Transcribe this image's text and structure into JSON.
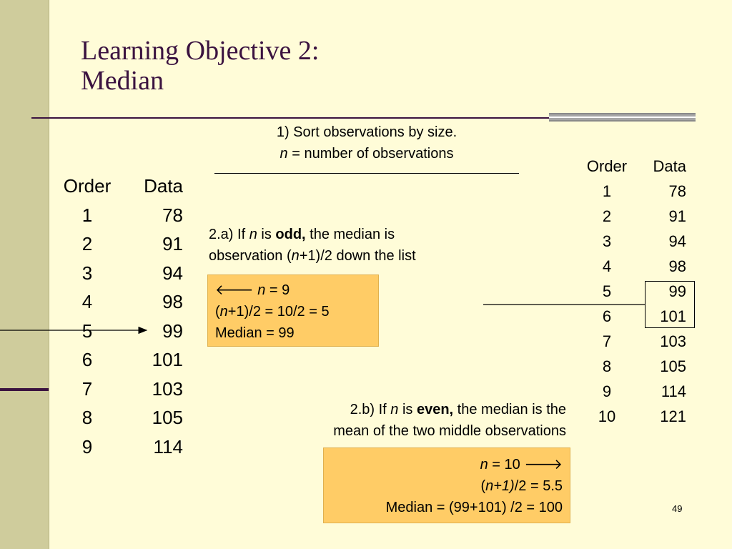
{
  "slide": {
    "title_line1": "Learning Objective 2:",
    "title_line2": "Median",
    "step1_line1": "1) Sort observations by size.",
    "step1_line2_n": "n",
    "step1_line2_rest": " = number of observations",
    "odd": {
      "line1_a": "2.a) If ",
      "line1_n": "n",
      "line1_b": " is ",
      "line1_bold": "odd,",
      "line1_c": " the median is",
      "line2_a": "observation (",
      "line2_n": "n",
      "line2_b": "+1)/2 down the list",
      "box_line1_arrow": "🡐",
      "box_line1_n": "n",
      "box_line1_rest": " = 9",
      "box_line2_a": "(",
      "box_line2_n": "n",
      "box_line2_b": "+1)/2 = 10/2 = 5",
      "box_line3": "Median = 99"
    },
    "even": {
      "line1_a": "2.b) If ",
      "line1_n": "n",
      "line1_b": " is ",
      "line1_bold": "even,",
      "line1_c": " the median is the",
      "line2": "mean of the two middle observations",
      "box_line1_n": "n",
      "box_line1_rest": " = 10 ",
      "box_line1_arrow": "🡒",
      "box_line2_a": "(",
      "box_line2_n": "n+1)",
      "box_line2_b": "/2 = 5.5",
      "box_line3": "Median = (99+101) /2 = 100"
    },
    "page_number": "49"
  },
  "left_table": {
    "header_order": "Order",
    "header_data": "Data",
    "rows": [
      [
        "1",
        "78"
      ],
      [
        "2",
        "91"
      ],
      [
        "3",
        "94"
      ],
      [
        "4",
        "98"
      ],
      [
        "5",
        "99"
      ],
      [
        "6",
        "101"
      ],
      [
        "7",
        "103"
      ],
      [
        "8",
        "105"
      ],
      [
        "9",
        "114"
      ]
    ]
  },
  "right_table": {
    "header_order": "Order",
    "header_data": "Data",
    "rows": [
      [
        "1",
        "78"
      ],
      [
        "2",
        "91"
      ],
      [
        "3",
        "94"
      ],
      [
        "4",
        "98"
      ],
      [
        "5",
        "99"
      ],
      [
        "6",
        "101"
      ],
      [
        "7",
        "103"
      ],
      [
        "8",
        "105"
      ],
      [
        "9",
        "114"
      ],
      [
        "10",
        "121"
      ]
    ]
  },
  "colors": {
    "background": "#fffcd8",
    "title": "#3b1340",
    "strip": "#cfcc9c",
    "callout": "#ffcc66"
  }
}
